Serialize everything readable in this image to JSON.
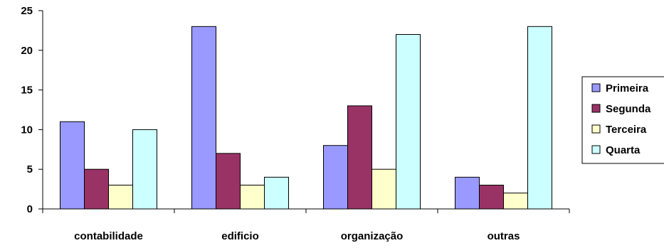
{
  "chart_data": {
    "type": "bar",
    "title": "",
    "xlabel": "",
    "ylabel": "",
    "categories": [
      "contabilidade",
      "edificio",
      "organização",
      "outras"
    ],
    "series": [
      {
        "name": "Primeira",
        "values": [
          11,
          23,
          8,
          4
        ],
        "color": "#9999ff"
      },
      {
        "name": "Segunda",
        "values": [
          5,
          7,
          13,
          3
        ],
        "color": "#993366"
      },
      {
        "name": "Terceira",
        "values": [
          3,
          3,
          5,
          2
        ],
        "color": "#ffffcc"
      },
      {
        "name": "Quarta",
        "values": [
          10,
          4,
          22,
          23
        ],
        "color": "#ccffff"
      }
    ],
    "ylim": [
      0,
      25
    ],
    "yticks": [
      "0",
      "5",
      "10",
      "15",
      "20",
      "25"
    ],
    "grid": false,
    "legend_position": "right"
  }
}
